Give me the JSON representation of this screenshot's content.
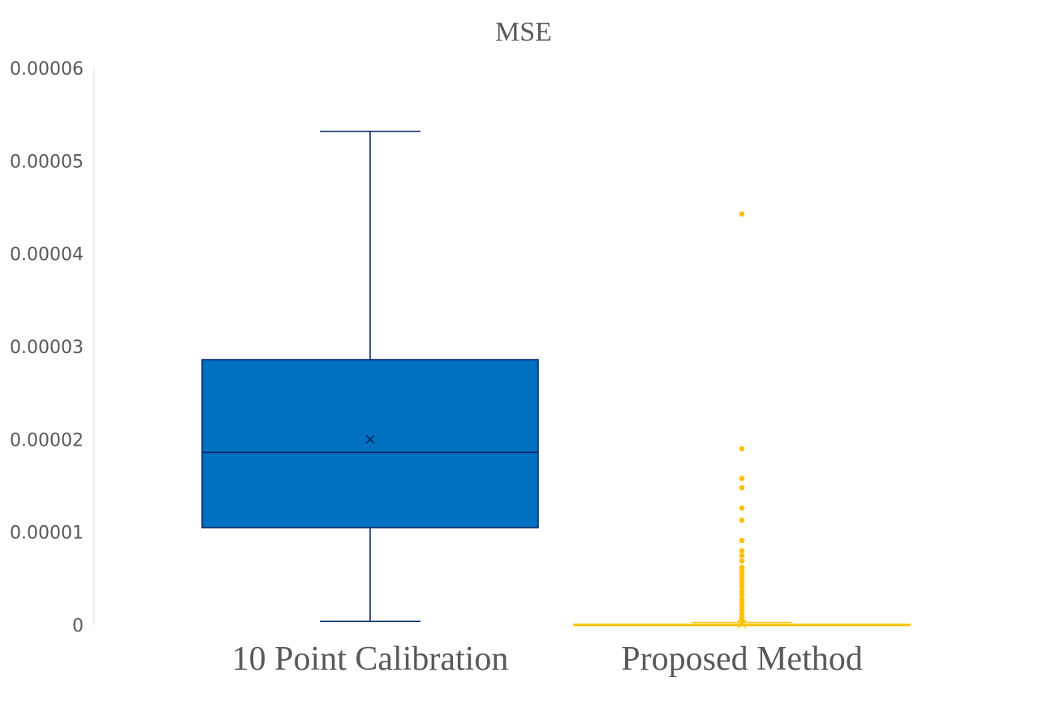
{
  "chart_data": {
    "type": "box",
    "title": "MSE",
    "xlabel": "",
    "ylabel": "",
    "ylim": [
      0,
      6e-05
    ],
    "yticks": [
      {
        "value": 0,
        "label": "0"
      },
      {
        "value": 1e-05,
        "label": "0.00001"
      },
      {
        "value": 2e-05,
        "label": "0.00002"
      },
      {
        "value": 3e-05,
        "label": "0.00003"
      },
      {
        "value": 4e-05,
        "label": "0.00004"
      },
      {
        "value": 5e-05,
        "label": "0.00005"
      },
      {
        "value": 6e-05,
        "label": "0.00006"
      }
    ],
    "grid": false,
    "legend": "none",
    "categories": [
      "10 Point Calibration",
      "Proposed Method"
    ],
    "boxes": [
      {
        "category": "10 Point Calibration",
        "color": "#0070C0",
        "edge_color": "#002060",
        "whisker_min": 4e-07,
        "q1": 1.05e-05,
        "median": 1.86e-05,
        "q3": 2.86e-05,
        "whisker_max": 5.32e-05,
        "mean": 2e-05,
        "outliers": []
      },
      {
        "category": "Proposed Method",
        "color": "#FFC000",
        "edge_color": "#FFC000",
        "whisker_min": 0.0,
        "q1": 2e-08,
        "median": 4e-08,
        "q3": 8e-08,
        "whisker_max": 3e-07,
        "mean": 1e-07,
        "outliers": [
          4.43e-05,
          1.9e-05,
          1.58e-05,
          1.48e-05,
          1.26e-05,
          1.13e-05,
          9.1e-06,
          8e-06,
          7.5e-06,
          6.9e-06,
          6.2e-06,
          5.8e-06,
          5.4e-06,
          5e-06,
          4.6e-06,
          4.2e-06,
          3.7e-06,
          3.3e-06,
          2.8e-06,
          2.4e-06,
          2e-06,
          1.6e-06,
          1.2e-06,
          8e-07,
          5e-07
        ]
      }
    ]
  }
}
